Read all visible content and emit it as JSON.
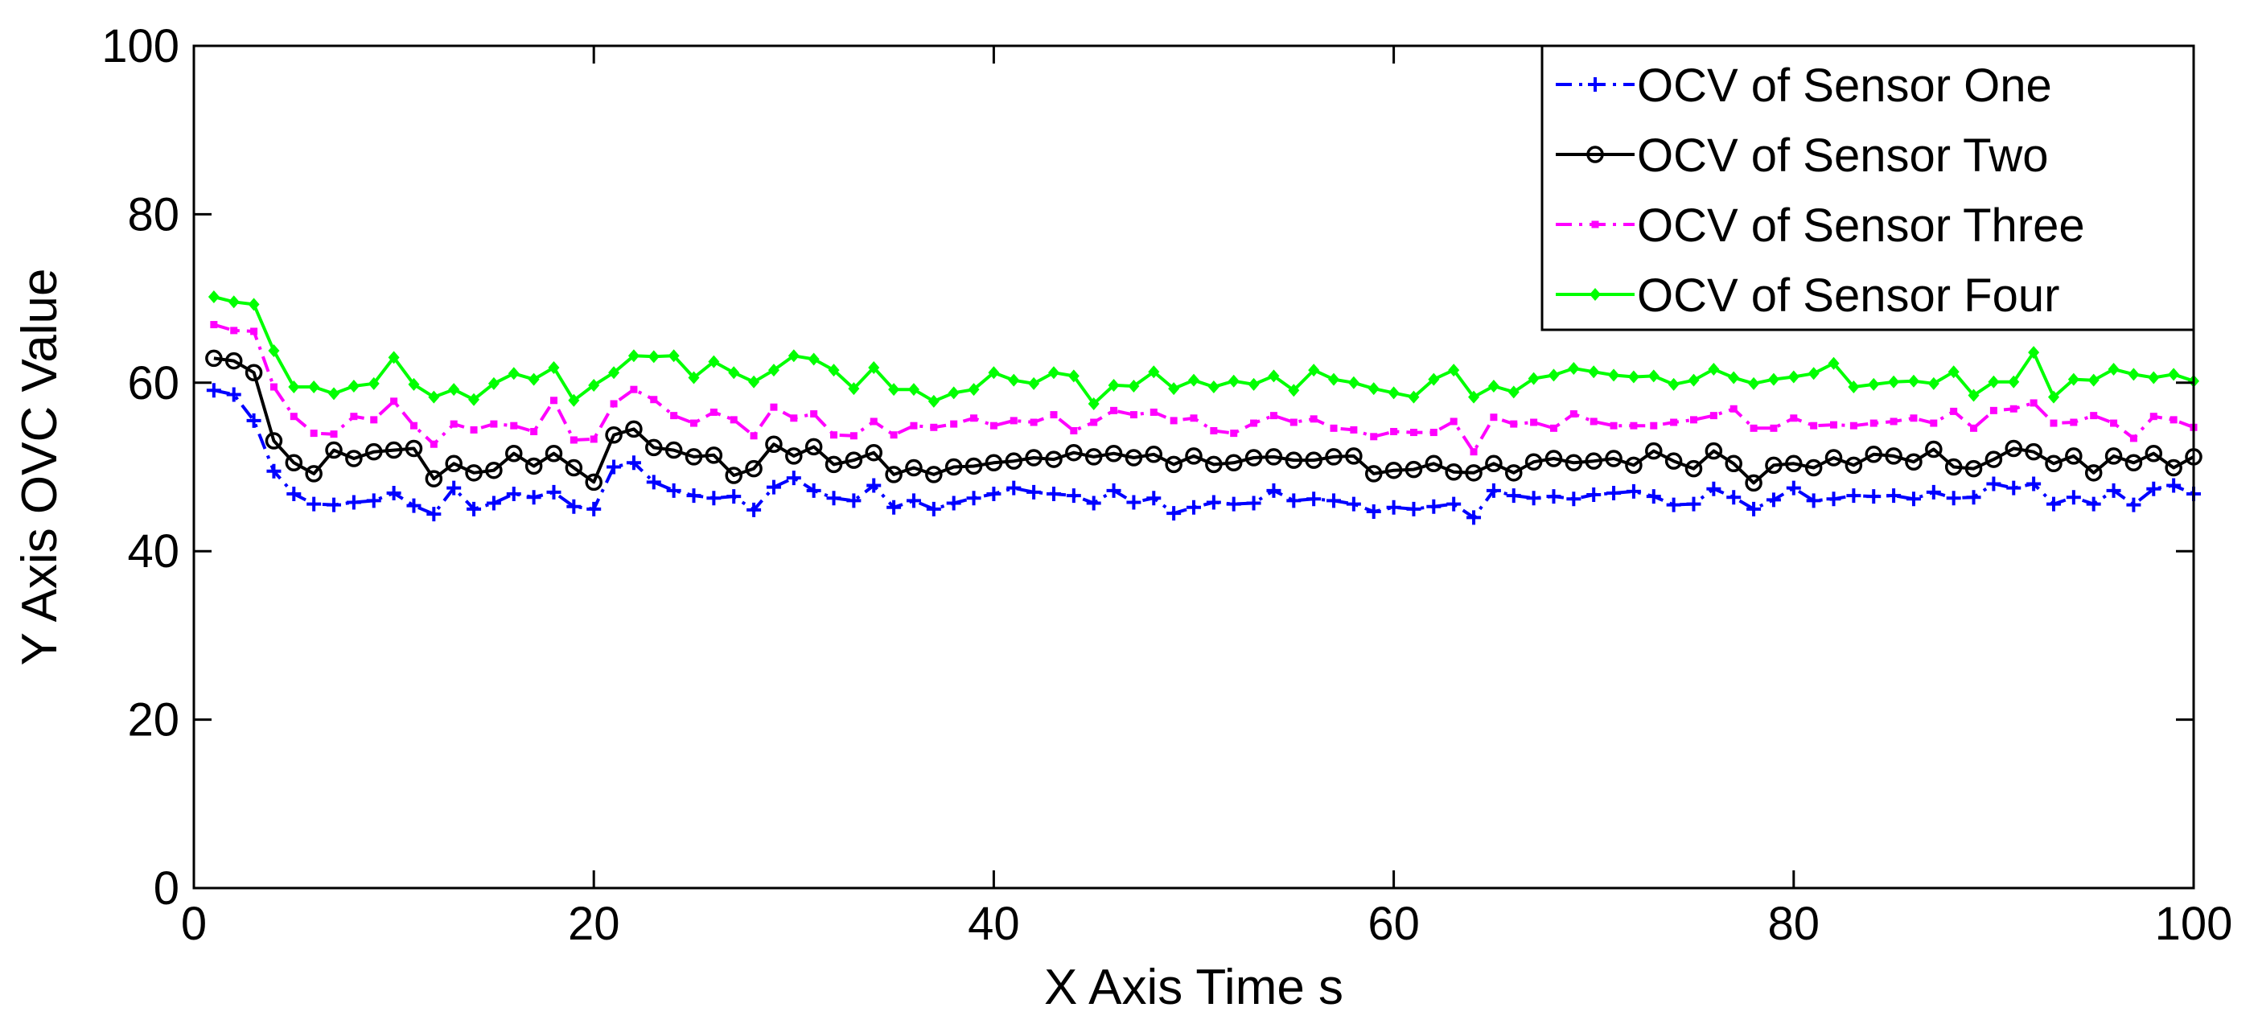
{
  "chart_data": {
    "type": "line",
    "title": "",
    "xlabel": "X Axis Time s",
    "ylabel": "Y Axis OVC Value",
    "xlim": [
      0,
      100
    ],
    "ylim": [
      0,
      100
    ],
    "xticks": [
      0,
      20,
      40,
      60,
      80,
      100
    ],
    "yticks": [
      0,
      20,
      40,
      60,
      80,
      100
    ],
    "grid": false,
    "legend_position": "top-right",
    "x": [
      1,
      2,
      3,
      4,
      5,
      6,
      7,
      8,
      9,
      10,
      11,
      12,
      13,
      14,
      15,
      16,
      17,
      18,
      19,
      20,
      21,
      22,
      23,
      24,
      25,
      26,
      27,
      28,
      29,
      30,
      31,
      32,
      33,
      34,
      35,
      36,
      37,
      38,
      39,
      40,
      41,
      42,
      43,
      44,
      45,
      46,
      47,
      48,
      49,
      50,
      51,
      52,
      53,
      54,
      55,
      56,
      57,
      58,
      59,
      60,
      61,
      62,
      63,
      64,
      65,
      66,
      67,
      68,
      69,
      70,
      71,
      72,
      73,
      74,
      75,
      76,
      77,
      78,
      79,
      80,
      81,
      82,
      83,
      84,
      85,
      86,
      87,
      88,
      89,
      90,
      91,
      92,
      93,
      94,
      95,
      96,
      97,
      98,
      99,
      100
    ],
    "series": [
      {
        "name": "OCV of Sensor One",
        "color": "#0000ff",
        "line_style": "dashdot",
        "marker": "plus",
        "values": [
          59.1,
          58.6,
          55.5,
          49.5,
          46.8,
          45.6,
          45.5,
          45.8,
          46,
          46.9,
          45.4,
          44.4,
          47.5,
          45,
          45.7,
          46.8,
          46.4,
          47,
          45.3,
          45,
          50,
          50.5,
          48.2,
          47.2,
          46.6,
          46.3,
          46.5,
          44.9,
          47.6,
          48.7,
          47.2,
          46.3,
          46,
          47.8,
          45.2,
          46,
          45,
          45.7,
          46.3,
          46.8,
          47.5,
          47,
          46.8,
          46.6,
          45.7,
          47.2,
          45.8,
          46.3,
          44.5,
          45.2,
          45.8,
          45.6,
          45.7,
          47.2,
          46,
          46.2,
          46,
          45.6,
          44.7,
          45.2,
          45,
          45.3,
          45.6,
          44,
          47.2,
          46.6,
          46.3,
          46.5,
          46.2,
          46.7,
          46.9,
          47.1,
          46.5,
          45.5,
          45.6,
          47.4,
          46.4,
          45,
          46.1,
          47.5,
          46,
          46.2,
          46.6,
          46.5,
          46.6,
          46.2,
          47,
          46.3,
          46.4,
          48,
          47.5,
          48,
          45.6,
          46.4,
          45.6,
          47.2,
          45.5,
          47.4,
          47.8,
          46.8
        ]
      },
      {
        "name": "OCV of Sensor Two",
        "color": "#000000",
        "line_style": "solid",
        "marker": "circle",
        "values": [
          62.9,
          62.6,
          61.2,
          53.1,
          50.5,
          49.2,
          52,
          51,
          51.8,
          52,
          52.2,
          48.6,
          50.4,
          49.3,
          49.6,
          51.6,
          50.1,
          51.6,
          49.9,
          48.2,
          53.8,
          54.5,
          52.3,
          52,
          51.2,
          51.4,
          49,
          49.8,
          52.7,
          51.3,
          52.4,
          50.3,
          50.8,
          51.7,
          49.1,
          49.9,
          49.1,
          50,
          50.1,
          50.5,
          50.7,
          51.1,
          50.9,
          51.7,
          51.2,
          51.6,
          51.1,
          51.5,
          50.3,
          51.3,
          50.3,
          50.5,
          51.1,
          51.2,
          50.8,
          50.8,
          51.2,
          51.3,
          49.2,
          49.6,
          49.7,
          50.4,
          49.4,
          49.3,
          50.4,
          49.3,
          50.6,
          51,
          50.5,
          50.7,
          51,
          50.2,
          51.9,
          50.7,
          49.8,
          51.9,
          50.4,
          48.1,
          50.2,
          50.4,
          49.9,
          51.1,
          50.2,
          51.5,
          51.3,
          50.6,
          52.1,
          50,
          49.8,
          50.9,
          52.2,
          51.8,
          50.4,
          51.3,
          49.3,
          51.3,
          50.5,
          51.6,
          49.9,
          51.2
        ]
      },
      {
        "name": "OCV of Sensor Three",
        "color": "#ff00ff",
        "line_style": "dashdot",
        "marker": "dot",
        "values": [
          66.9,
          66.2,
          66.1,
          59.5,
          56,
          54,
          53.9,
          56,
          55.6,
          57.8,
          54.9,
          52.7,
          55.1,
          54.4,
          55.1,
          54.9,
          54.2,
          57.9,
          53.2,
          53.3,
          57.5,
          59.2,
          58,
          56.1,
          55.2,
          56.5,
          55.6,
          53.7,
          57.1,
          55.8,
          56.3,
          53.8,
          53.7,
          55.4,
          53.8,
          54.9,
          54.7,
          55.1,
          55.8,
          54.9,
          55.5,
          55.3,
          56.2,
          54.3,
          55.3,
          56.7,
          56.2,
          56.5,
          55.5,
          55.8,
          54.3,
          54,
          55.2,
          56.1,
          55.3,
          55.7,
          54.6,
          54.4,
          53.6,
          54.2,
          54.1,
          54.1,
          55.4,
          51.8,
          55.9,
          55.1,
          55.3,
          54.6,
          56.3,
          55.4,
          54.9,
          54.9,
          54.9,
          55.3,
          55.6,
          56.1,
          56.9,
          54.6,
          54.6,
          55.8,
          54.9,
          55,
          54.9,
          55.2,
          55.4,
          55.8,
          55.2,
          56.6,
          54.6,
          56.7,
          56.9,
          57.6,
          55.2,
          55.3,
          56.1,
          55.2,
          53.4,
          56,
          55.6,
          54.7
        ]
      },
      {
        "name": "OCV of Sensor Four",
        "color": "#00ff00",
        "line_style": "solid",
        "marker": "diamond",
        "values": [
          70.2,
          69.6,
          69.3,
          63.8,
          59.5,
          59.5,
          58.7,
          59.6,
          59.9,
          63,
          59.8,
          58.3,
          59.2,
          58,
          59.9,
          61.1,
          60.4,
          61.8,
          57.9,
          59.7,
          61.2,
          63.2,
          63.1,
          63.2,
          60.6,
          62.5,
          61.2,
          60.1,
          61.5,
          63.2,
          62.8,
          61.5,
          59.3,
          61.8,
          59.2,
          59.2,
          57.8,
          58.8,
          59.2,
          61.2,
          60.3,
          59.9,
          61.2,
          60.8,
          57.5,
          59.7,
          59.6,
          61.3,
          59.3,
          60.3,
          59.5,
          60.2,
          59.8,
          60.8,
          59.1,
          61.5,
          60.4,
          60,
          59.3,
          58.8,
          58.3,
          60.4,
          61.5,
          58.3,
          59.6,
          58.9,
          60.5,
          60.9,
          61.7,
          61.3,
          60.9,
          60.7,
          60.8,
          59.8,
          60.3,
          61.6,
          60.6,
          59.9,
          60.4,
          60.7,
          61.1,
          62.3,
          59.5,
          59.8,
          60.1,
          60.2,
          59.9,
          61.3,
          58.5,
          60.1,
          60.1,
          63.6,
          58.3,
          60.4,
          60.3,
          61.6,
          61,
          60.6,
          61,
          60.2
        ]
      }
    ]
  }
}
